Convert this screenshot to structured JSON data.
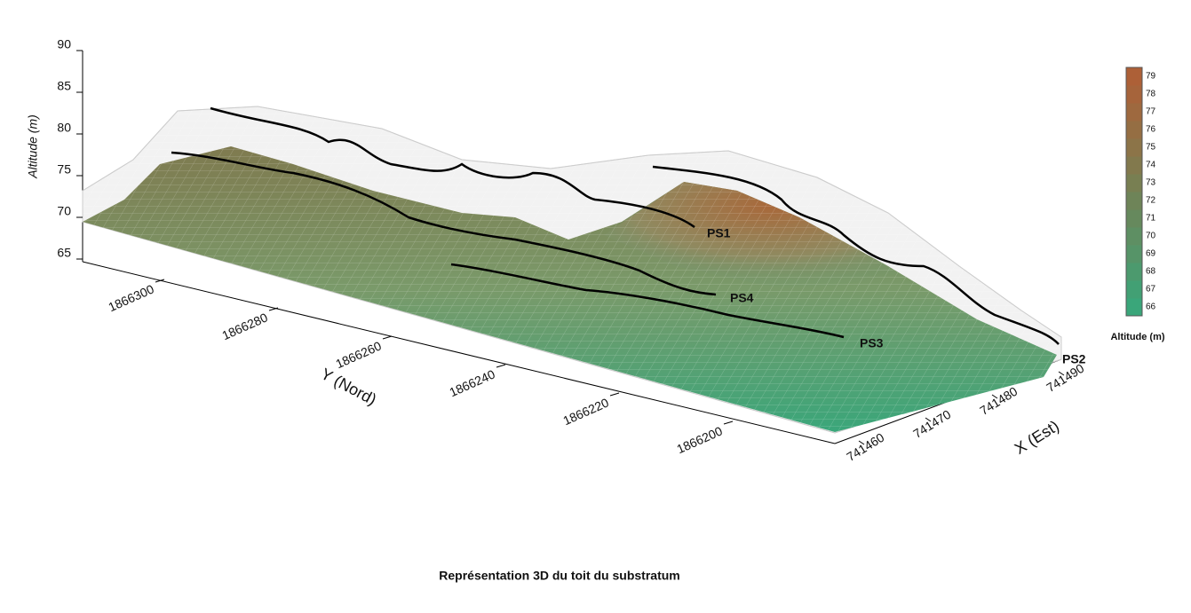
{
  "figure": {
    "z_axis": {
      "label": "Altitude (m)",
      "ticks": [
        65,
        70,
        75,
        80,
        85,
        90
      ]
    },
    "y_axis": {
      "label": "Y (Nord)",
      "ticks": [
        1866300,
        1866280,
        1866260,
        1866240,
        1866220,
        1866200
      ]
    },
    "x_axis": {
      "label": "X (Est)",
      "ticks": [
        741460,
        741470,
        741480,
        741490
      ]
    },
    "colorbar": {
      "label": "Altitude (m)",
      "ticks": [
        66,
        67,
        68,
        69,
        70,
        71,
        72,
        73,
        74,
        75,
        76,
        77,
        78,
        79
      ],
      "colors": [
        "#3aa67a",
        "#42a074",
        "#4c9a6e",
        "#569468",
        "#5e8f63",
        "#66895d",
        "#6e8458",
        "#787f52",
        "#82794d",
        "#8c7448",
        "#956e43",
        "#9e693f",
        "#a6643b",
        "#ad6037"
      ]
    },
    "profiles": [
      "PS1",
      "PS2",
      "PS3",
      "PS4"
    ]
  },
  "caption": "Représentation 3D du toit du substratum"
}
